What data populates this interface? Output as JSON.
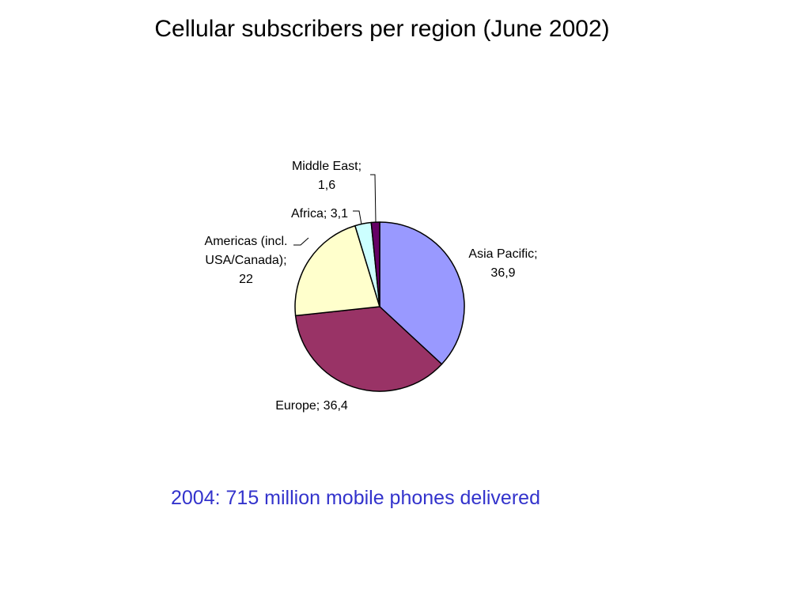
{
  "slide": {
    "title": "Cellular subscribers per region (June 2002)",
    "footnote": "2004: 715 million mobile phones delivered",
    "footnote_color": "#3333cc"
  },
  "chart_data": {
    "type": "pie",
    "title": "",
    "start_angle_deg": 0,
    "direction": "clockwise",
    "slices": [
      {
        "name": "Asia Pacific",
        "value": 36.9,
        "color": "#9999ff",
        "label_lines": [
          "Asia Pacific;",
          "36,9"
        ]
      },
      {
        "name": "Europe",
        "value": 36.4,
        "color": "#993366",
        "label_lines": [
          "Europe; 36,4"
        ]
      },
      {
        "name": "Americas (incl. USA/Canada)",
        "value": 22,
        "color": "#ffffcc",
        "label_lines": [
          "Americas (incl.",
          "USA/Canada);",
          "22"
        ]
      },
      {
        "name": "Africa",
        "value": 3.1,
        "color": "#ccffff",
        "label_lines": [
          "Africa; 3,1"
        ]
      },
      {
        "name": "Middle East",
        "value": 1.6,
        "color": "#660066",
        "label_lines": [
          "Middle East;",
          "1,6"
        ]
      }
    ]
  }
}
